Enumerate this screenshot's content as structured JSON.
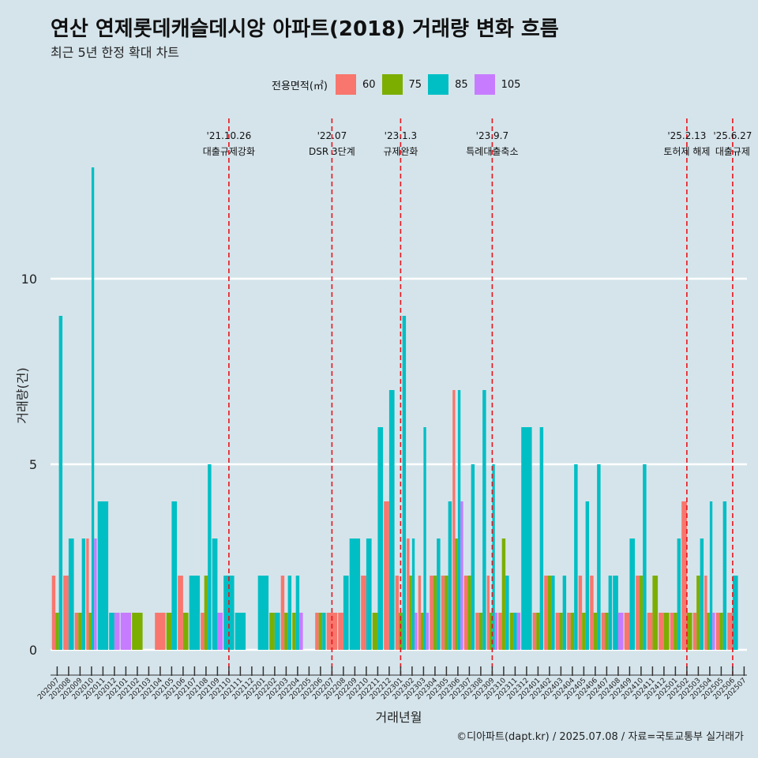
{
  "chart_data": {
    "type": "bar",
    "title": "연산 연제롯데캐슬데시앙 아파트(2018) 거래량 변화 흐름",
    "subtitle": "최근 5년 한정 확대 차트",
    "xlabel": "거래년월",
    "ylabel": "거래량(건)",
    "ylim": [
      -0.6,
      13.6
    ],
    "yticks": [
      0,
      5,
      10
    ],
    "legend_title": "전용면적(㎡)",
    "legend_position": "top",
    "caption": "©디아파트(dapt.kr) / 2025.07.08 / 자료=국토교통부 실거래가",
    "categories": [
      "202007",
      "202008",
      "202009",
      "202010",
      "202011",
      "202012",
      "202101",
      "202102",
      "202103",
      "202104",
      "202105",
      "202106",
      "202107",
      "202108",
      "202109",
      "202110",
      "202111",
      "202112",
      "202201",
      "202202",
      "202203",
      "202204",
      "202205",
      "202206",
      "202207",
      "202208",
      "202209",
      "202210",
      "202211",
      "202212",
      "202301",
      "202302",
      "202303",
      "202304",
      "202305",
      "202306",
      "202307",
      "202308",
      "202309",
      "202310",
      "202311",
      "202312",
      "202401",
      "202402",
      "202403",
      "202404",
      "202405",
      "202406",
      "202407",
      "202408",
      "202409",
      "202410",
      "202411",
      "202412",
      "202501",
      "202502",
      "202503",
      "202504",
      "202505",
      "202506",
      "202507"
    ],
    "series": [
      {
        "name": "60",
        "color": "#f8766d",
        "values": [
          2,
          2,
          1,
          3,
          0,
          0,
          0,
          0,
          0,
          1,
          0,
          2,
          0,
          1,
          0,
          0,
          0,
          0,
          0,
          0,
          2,
          0,
          0,
          1,
          1,
          1,
          0,
          2,
          0,
          4,
          2,
          3,
          2,
          2,
          2,
          7,
          2,
          1,
          2,
          1,
          0,
          0,
          1,
          2,
          1,
          1,
          2,
          2,
          1,
          0,
          1,
          2,
          1,
          1,
          1,
          4,
          1,
          2,
          1,
          1,
          0
        ]
      },
      {
        "name": "75",
        "color": "#7cae00",
        "values": [
          1,
          0,
          1,
          1,
          0,
          0,
          0,
          1,
          0,
          0,
          1,
          1,
          0,
          2,
          0,
          0,
          0,
          0,
          0,
          1,
          1,
          1,
          0,
          1,
          0,
          0,
          0,
          0,
          1,
          0,
          1,
          2,
          1,
          2,
          2,
          3,
          2,
          1,
          1,
          3,
          1,
          0,
          1,
          2,
          1,
          1,
          1,
          1,
          1,
          0,
          0,
          2,
          2,
          1,
          1,
          1,
          2,
          1,
          1,
          0,
          0
        ]
      },
      {
        "name": "85",
        "color": "#00bfc4",
        "values": [
          9,
          3,
          3,
          13,
          4,
          1,
          0,
          0,
          0,
          0,
          4,
          0,
          2,
          5,
          3,
          2,
          1,
          0,
          2,
          1,
          2,
          2,
          0,
          1,
          0,
          2,
          3,
          3,
          6,
          7,
          9,
          3,
          6,
          3,
          4,
          7,
          5,
          7,
          5,
          2,
          1,
          6,
          6,
          2,
          2,
          5,
          4,
          5,
          2,
          2,
          3,
          5,
          0,
          0,
          3,
          0,
          3,
          4,
          4,
          2,
          0
        ]
      },
      {
        "name": "105",
        "color": "#c77cff",
        "values": [
          0,
          0,
          0,
          3,
          0,
          1,
          1,
          0,
          0,
          0,
          0,
          0,
          0,
          0,
          1,
          0,
          0,
          0,
          0,
          0,
          0,
          1,
          0,
          0,
          0,
          0,
          0,
          0,
          0,
          0,
          0,
          1,
          1,
          0,
          0,
          4,
          0,
          0,
          1,
          0,
          1,
          0,
          0,
          0,
          0,
          0,
          0,
          0,
          0,
          1,
          0,
          0,
          0,
          0,
          0,
          0,
          0,
          1,
          0,
          0,
          0
        ]
      }
    ],
    "annotations": [
      {
        "month": "202110",
        "date": "'21.10.26",
        "label": "대출규제강화"
      },
      {
        "month": "202207",
        "date": "'22.07",
        "label": "DSR 3단계"
      },
      {
        "month": "202301",
        "date": "'23.1.3",
        "label": "규제완화"
      },
      {
        "month": "202309",
        "date": "'23.9.7",
        "label": "특례대출축소"
      },
      {
        "month": "202502",
        "date": "'25.2.13",
        "label": "토허제 해제"
      },
      {
        "month": "202506",
        "date": "'25.6.27",
        "label": "대출규제"
      }
    ]
  }
}
